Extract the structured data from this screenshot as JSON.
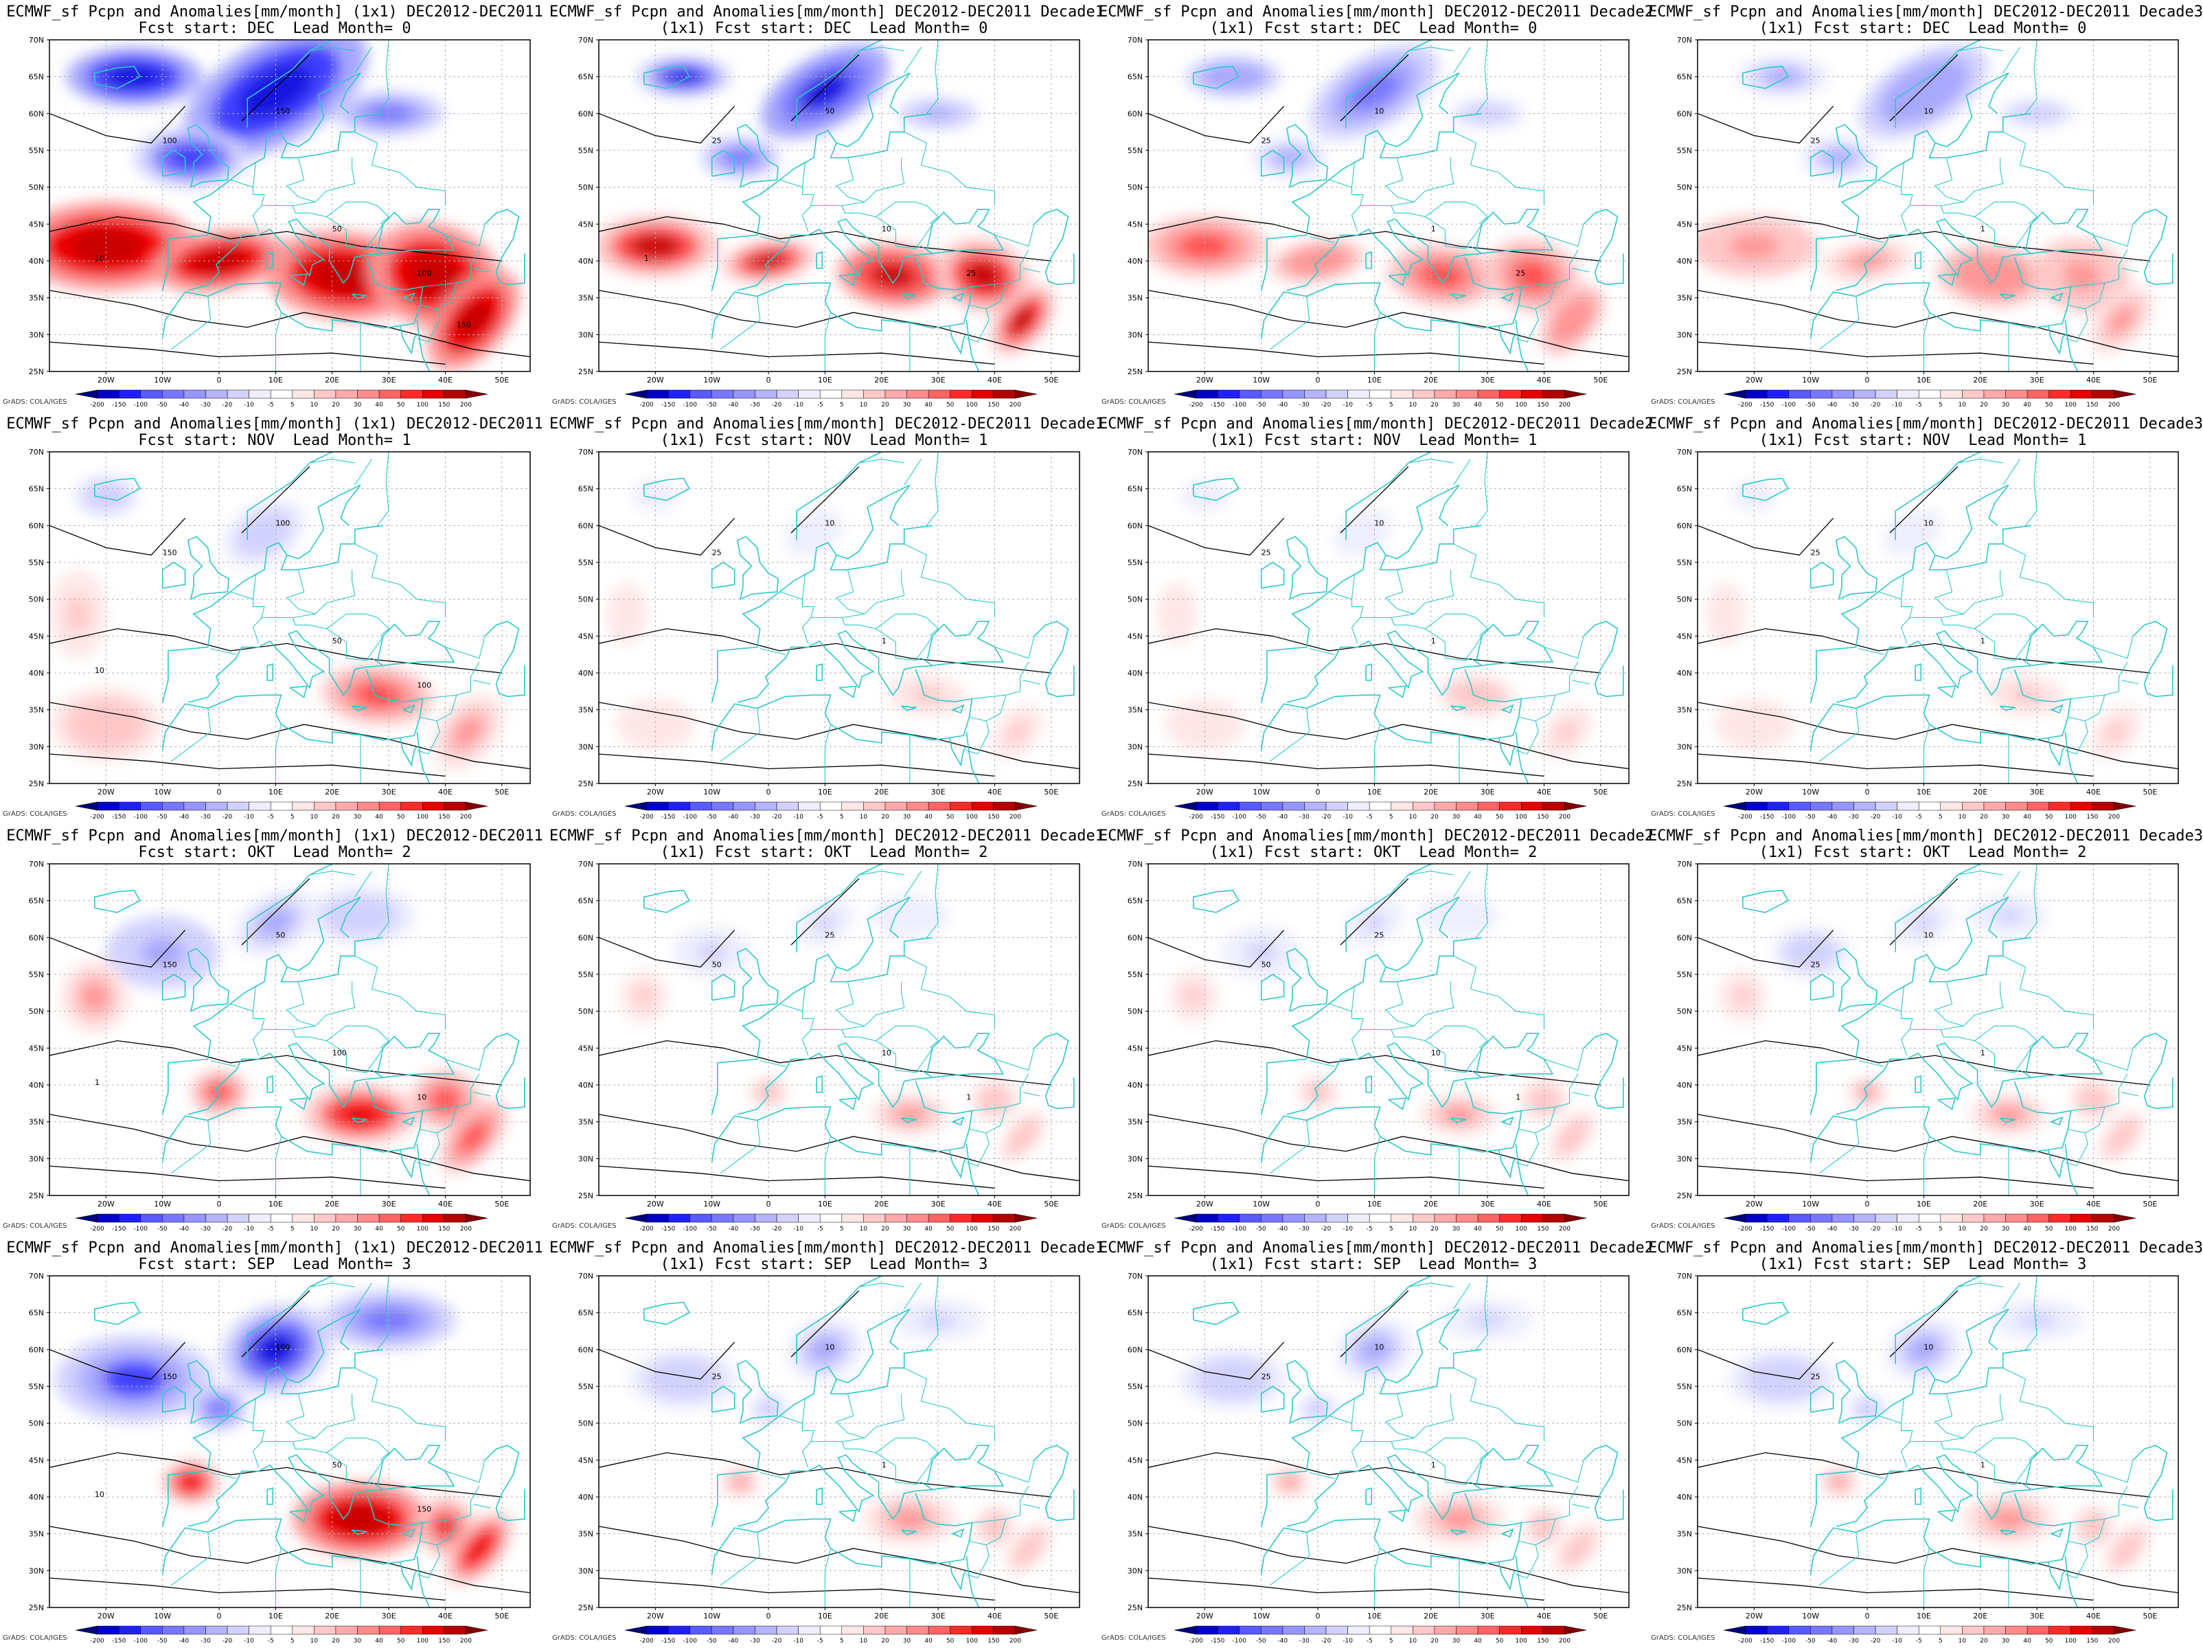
{
  "figure": {
    "rows": [
      {
        "lead_month": "0",
        "fcst_start": "DEC",
        "panels": [
          {
            "title1": "ECMWF_sf Pcpn and Anomalies[mm/month] (1x1) DEC2012-DEC2011",
            "title2": "Fcst start: DEC  Lead Month= 0",
            "intensity": 1.0,
            "contour_labels": [
              "100",
              "150",
              "50",
              "100",
              "10",
              "150"
            ]
          },
          {
            "title1": "ECMWF_sf Pcpn and Anomalies[mm/month] DEC2012-DEC2011 Decade1",
            "title2": "(1x1) Fcst start: DEC  Lead Month= 0",
            "intensity": 0.85,
            "contour_labels": [
              "25",
              "50",
              "10",
              "25",
              "1"
            ]
          },
          {
            "title1": "ECMWF_sf Pcpn and Anomalies[mm/month] DEC2012-DEC2011 Decade2",
            "title2": "(1x1) Fcst start: DEC  Lead Month= 0",
            "intensity": 0.5,
            "contour_labels": [
              "25",
              "10",
              "1",
              "25"
            ]
          },
          {
            "title1": "ECMWF_sf Pcpn and Anomalies[mm/month] DEC2012-DEC2011 Decade3",
            "title2": "(1x1) Fcst start: DEC  Lead Month= 0",
            "intensity": 0.45,
            "contour_labels": [
              "25",
              "10",
              "1"
            ]
          }
        ]
      },
      {
        "lead_month": "1",
        "fcst_start": "NOV",
        "panels": [
          {
            "title1": "ECMWF_sf Pcpn and Anomalies[mm/month] (1x1) DEC2012-DEC2011",
            "title2": "Fcst start: NOV  Lead Month= 1",
            "intensity": 0.55,
            "contour_labels": [
              "150",
              "100",
              "50",
              "100",
              "10"
            ]
          },
          {
            "title1": "ECMWF_sf Pcpn and Anomalies[mm/month] DEC2012-DEC2011 Decade1",
            "title2": "(1x1) Fcst start: NOV  Lead Month= 1",
            "intensity": 0.25,
            "contour_labels": [
              "25",
              "10",
              "1"
            ]
          },
          {
            "title1": "ECMWF_sf Pcpn and Anomalies[mm/month] DEC2012-DEC2011 Decade2",
            "title2": "(1x1) Fcst start: NOV  Lead Month= 1",
            "intensity": 0.3,
            "contour_labels": [
              "25",
              "10",
              "1"
            ]
          },
          {
            "title1": "ECMWF_sf Pcpn and Anomalies[mm/month] DEC2012-DEC2011 Decade3",
            "title2": "(1x1) Fcst start: NOV  Lead Month= 1",
            "intensity": 0.25,
            "contour_labels": [
              "25",
              "10",
              "1"
            ]
          }
        ]
      },
      {
        "lead_month": "2",
        "fcst_start": "OKT",
        "panels": [
          {
            "title1": "ECMWF_sf Pcpn and Anomalies[mm/month] (1x1) DEC2012-DEC2011",
            "title2": "Fcst start: OKT  Lead Month= 2",
            "intensity": 0.7,
            "contour_labels": [
              "150",
              "50",
              "100",
              "10",
              "1"
            ]
          },
          {
            "title1": "ECMWF_sf Pcpn and Anomalies[mm/month] DEC2012-DEC2011 Decade1",
            "title2": "(1x1) Fcst start: OKT  Lead Month= 2",
            "intensity": 0.35,
            "contour_labels": [
              "50",
              "25",
              "10",
              "1"
            ]
          },
          {
            "title1": "ECMWF_sf Pcpn and Anomalies[mm/month] DEC2012-DEC2011 Decade2",
            "title2": "(1x1) Fcst start: OKT  Lead Month= 2",
            "intensity": 0.35,
            "contour_labels": [
              "50",
              "25",
              "10",
              "1"
            ]
          },
          {
            "title1": "ECMWF_sf Pcpn and Anomalies[mm/month] DEC2012-DEC2011 Decade3",
            "title2": "(1x1) Fcst start: OKT  Lead Month= 2",
            "intensity": 0.4,
            "contour_labels": [
              "25",
              "10",
              "1"
            ]
          }
        ]
      },
      {
        "lead_month": "3",
        "fcst_start": "SEP",
        "panels": [
          {
            "title1": "ECMWF_sf Pcpn and Anomalies[mm/month] (1x1) DEC2012-DEC2011",
            "title2": "Fcst start: SEP  Lead Month= 3",
            "intensity": 0.9,
            "contour_labels": [
              "150",
              "100",
              "50",
              "150",
              "10"
            ]
          },
          {
            "title1": "ECMWF_sf Pcpn and Anomalies[mm/month] DEC2012-DEC2011 Decade1",
            "title2": "(1x1) Fcst start: SEP  Lead Month= 3",
            "intensity": 0.4,
            "contour_labels": [
              "25",
              "10",
              "1"
            ]
          },
          {
            "title1": "ECMWF_sf Pcpn and Anomalies[mm/month] DEC2012-DEC2011 Decade2",
            "title2": "(1x1) Fcst start: SEP  Lead Month= 3",
            "intensity": 0.4,
            "contour_labels": [
              "25",
              "10",
              "1"
            ]
          },
          {
            "title1": "ECMWF_sf Pcpn and Anomalies[mm/month] DEC2012-DEC2011 Decade3",
            "title2": "(1x1) Fcst start: SEP  Lead Month= 3",
            "intensity": 0.4,
            "contour_labels": [
              "25",
              "10",
              "1"
            ]
          }
        ]
      }
    ],
    "lat_labels": [
      "70N",
      "65N",
      "60N",
      "55N",
      "50N",
      "45N",
      "40N",
      "35N",
      "30N",
      "25N"
    ],
    "lon_labels": [
      "20W",
      "10W",
      "0",
      "10E",
      "20E",
      "30E",
      "40E",
      "50E"
    ],
    "colorbar": {
      "labels": [
        "-200",
        "-150",
        "-100",
        "-50",
        "-40",
        "-30",
        "-20",
        "-10",
        "-5",
        "5",
        "10",
        "20",
        "30",
        "40",
        "50",
        "100",
        "150",
        "200"
      ],
      "colors": [
        "#00007a",
        "#0000c8",
        "#2020ff",
        "#5a5aff",
        "#7878ff",
        "#9696ff",
        "#b4b4ff",
        "#d2d2ff",
        "#eeeeff",
        "#ffffff",
        "#ffe6e6",
        "#ffc8c8",
        "#ffaaaa",
        "#ff8c8c",
        "#ff6464",
        "#ff2a2a",
        "#e60000",
        "#b40000",
        "#820000"
      ]
    },
    "credit": "GrADS: COLA/IGES",
    "colors": {
      "coast": "#2ec7c9",
      "contour": "#000000",
      "frame": "#000000"
    }
  }
}
